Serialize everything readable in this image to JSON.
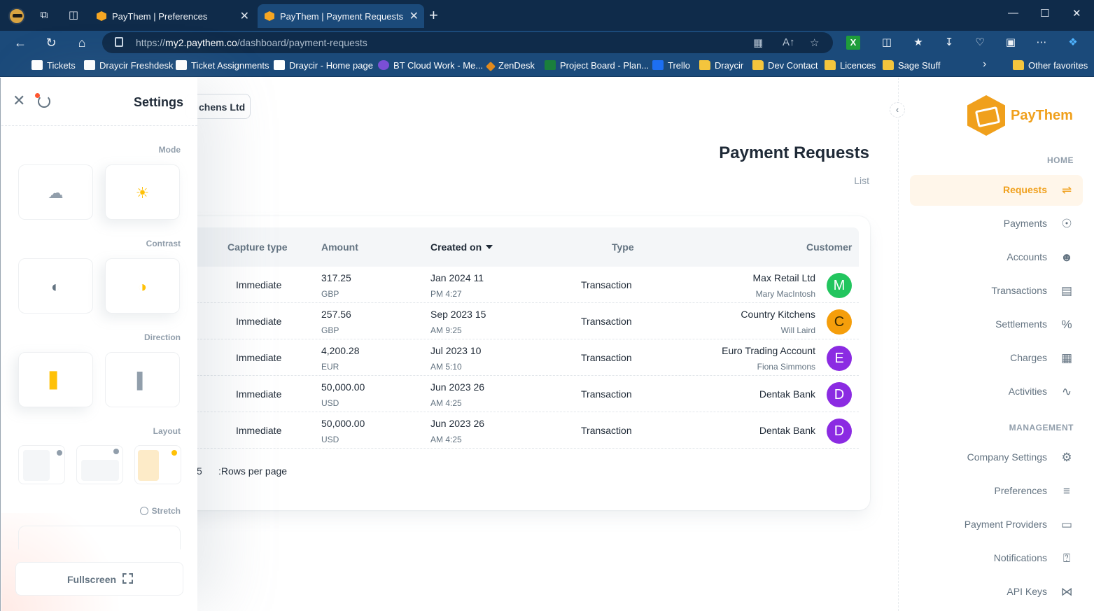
{
  "browser": {
    "tabs": [
      {
        "label": "PayThem | Preferences",
        "active": false
      },
      {
        "label": "PayThem | Payment Requests",
        "active": true
      }
    ],
    "url_prefix": "https://",
    "url_host": "my2.paythem.co",
    "url_path": "/dashboard/payment-requests",
    "bookmarks": [
      {
        "label": "Tickets",
        "icon": "draycir"
      },
      {
        "label": "Draycir Freshdesk",
        "icon": "draycir"
      },
      {
        "label": "Ticket Assignments",
        "icon": "draycir"
      },
      {
        "label": "Draycir - Home page",
        "icon": "draycir"
      },
      {
        "label": "BT Cloud Work - Me...",
        "icon": "bt"
      },
      {
        "label": "ZenDesk",
        "icon": "zendesk"
      },
      {
        "label": "Project Board - Plan...",
        "icon": "planner"
      },
      {
        "label": "Trello",
        "icon": "trello"
      },
      {
        "label": "Draycir",
        "icon": "folder"
      },
      {
        "label": "Dev Contact",
        "icon": "folder"
      },
      {
        "label": "Licences",
        "icon": "folder"
      },
      {
        "label": "Sage Stuff",
        "icon": "folder"
      }
    ],
    "other_favorites": "Other favorites"
  },
  "header": {
    "company_button": "chens Ltd",
    "title": "Payment Requests",
    "breadcrumb": "List"
  },
  "table": {
    "columns": {
      "capture_type": "Capture type",
      "amount": "Amount",
      "created_on": "Created on",
      "type": "Type",
      "customer": "Customer"
    },
    "rows": [
      {
        "capture": "Immediate",
        "amount": "317.25",
        "currency": "GBP",
        "date": "Jan 2024 11",
        "time": "PM 4:27",
        "type": "Transaction",
        "customer": "Max Retail Ltd",
        "contact": "Mary MacIntosh",
        "initial": "M",
        "color": "#22c55e"
      },
      {
        "capture": "Immediate",
        "amount": "257.56",
        "currency": "GBP",
        "date": "Sep 2023 15",
        "time": "AM 9:25",
        "type": "Transaction",
        "customer": "Country Kitchens",
        "contact": "Will Laird",
        "initial": "C",
        "color": "#f59e0b"
      },
      {
        "capture": "Immediate",
        "amount": "4,200.28",
        "currency": "EUR",
        "date": "Jul 2023 10",
        "time": "AM 5:10",
        "type": "Transaction",
        "customer": "Euro Trading Account",
        "contact": "Fiona Simmons",
        "initial": "E",
        "color": "#8b2be2"
      },
      {
        "capture": "Immediate",
        "amount": "50,000.00",
        "currency": "USD",
        "date": "Jun 2023 26",
        "time": "AM 4:25",
        "type": "Transaction",
        "customer": "Dentak Bank",
        "contact": "",
        "initial": "D",
        "color": "#8b2be2"
      },
      {
        "capture": "Immediate",
        "amount": "50,000.00",
        "currency": "USD",
        "date": "Jun 2023 26",
        "time": "AM 4:25",
        "type": "Transaction",
        "customer": "Dentak Bank",
        "contact": "",
        "initial": "D",
        "color": "#8b2be2"
      }
    ],
    "rows_per_page_value": "5",
    "rows_per_page_label": ":Rows per page"
  },
  "nav": {
    "brand": "PayThem",
    "section_home": "HOME",
    "section_management": "MANAGEMENT",
    "home_items": [
      {
        "label": "Requests",
        "icon": "link-icon",
        "active": true
      },
      {
        "label": "Payments",
        "icon": "payments-icon"
      },
      {
        "label": "Accounts",
        "icon": "users-icon"
      },
      {
        "label": "Transactions",
        "icon": "receipt-icon"
      },
      {
        "label": "Settlements",
        "icon": "percent-icon"
      },
      {
        "label": "Charges",
        "icon": "calculator-icon"
      },
      {
        "label": "Activities",
        "icon": "activity-icon"
      }
    ],
    "management_items": [
      {
        "label": "Company Settings",
        "icon": "gear-icon"
      },
      {
        "label": "Preferences",
        "icon": "sliders-icon"
      },
      {
        "label": "Payment Providers",
        "icon": "card-icon"
      },
      {
        "label": "Notifications",
        "icon": "bell-icon"
      },
      {
        "label": "API Keys",
        "icon": "nodes-icon"
      }
    ]
  },
  "settings": {
    "title": "Settings",
    "mode": "Mode",
    "contrast": "Contrast",
    "direction": "Direction",
    "layout": "Layout",
    "stretch": "Stretch",
    "fullscreen": "Fullscreen"
  },
  "colors": {
    "brand": "#f0a01c",
    "chrome_dark": "#0f2b4a",
    "chrome": "#1b4a7a"
  }
}
